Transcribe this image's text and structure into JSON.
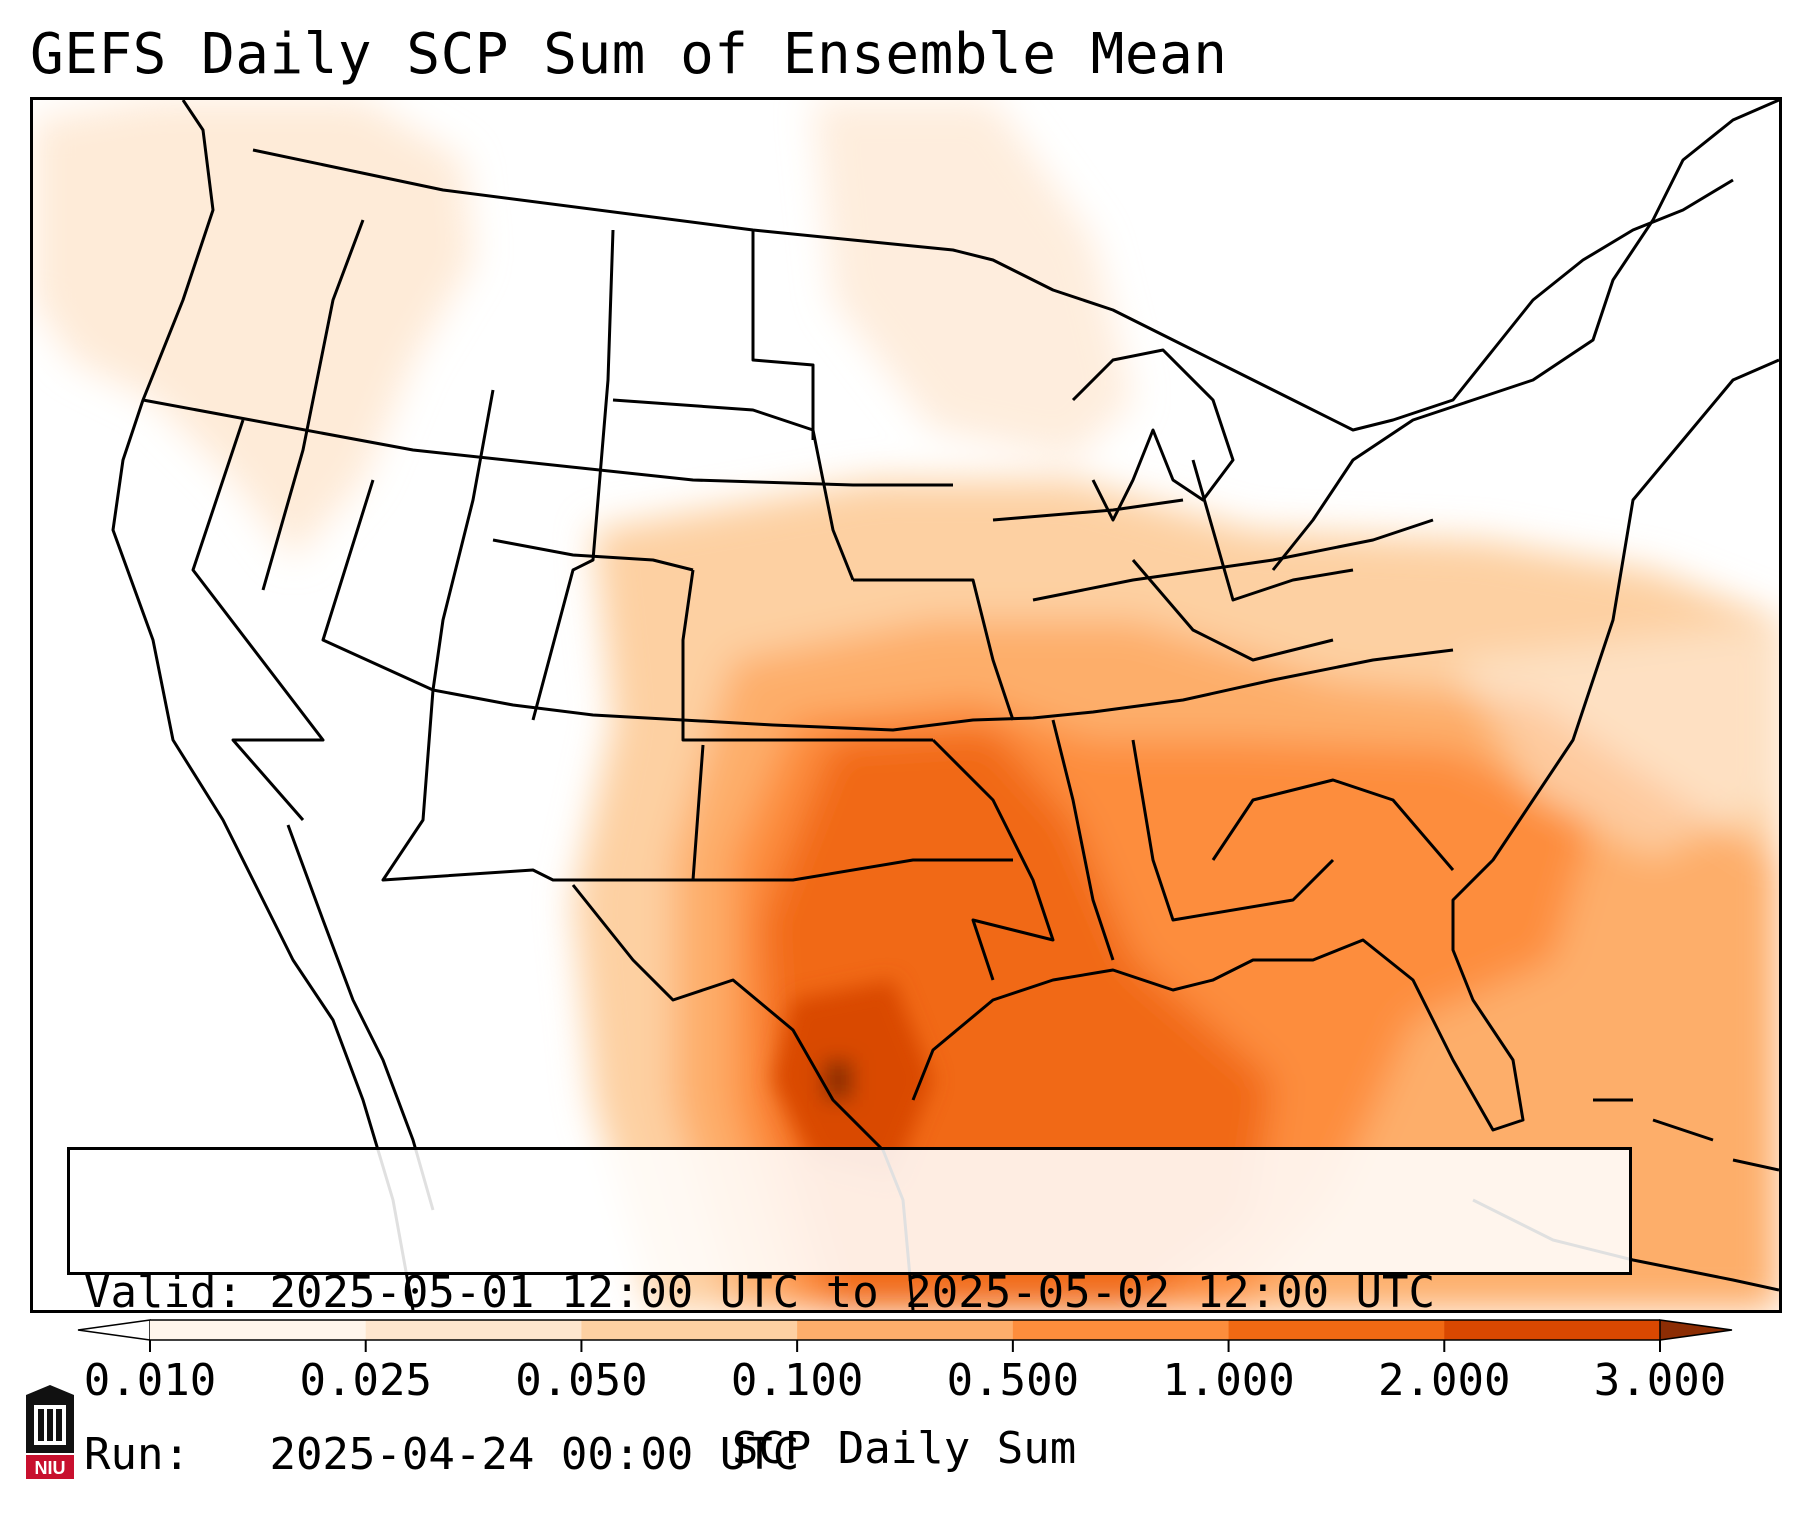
{
  "title": "GEFS Daily SCP Sum of Ensemble Mean",
  "info": {
    "valid_label": "Valid:",
    "valid_value": "2025-05-01 12:00 UTC to 2025-05-02 12:00 UTC",
    "run_label": "Run:",
    "run_value": "2025-04-24 00:00 UTC"
  },
  "colorbar": {
    "label": "SCP Daily Sum",
    "ticks": [
      "0.010",
      "0.025",
      "0.050",
      "0.100",
      "0.500",
      "1.000",
      "2.000",
      "3.000"
    ],
    "colors": [
      "#fff5eb",
      "#fee6ce",
      "#fdd0a2",
      "#fdae6b",
      "#fd8d3c",
      "#f16913",
      "#d94801",
      "#8c2d04"
    ]
  },
  "logo": {
    "text": "NIU",
    "color": "#c8102e"
  }
}
